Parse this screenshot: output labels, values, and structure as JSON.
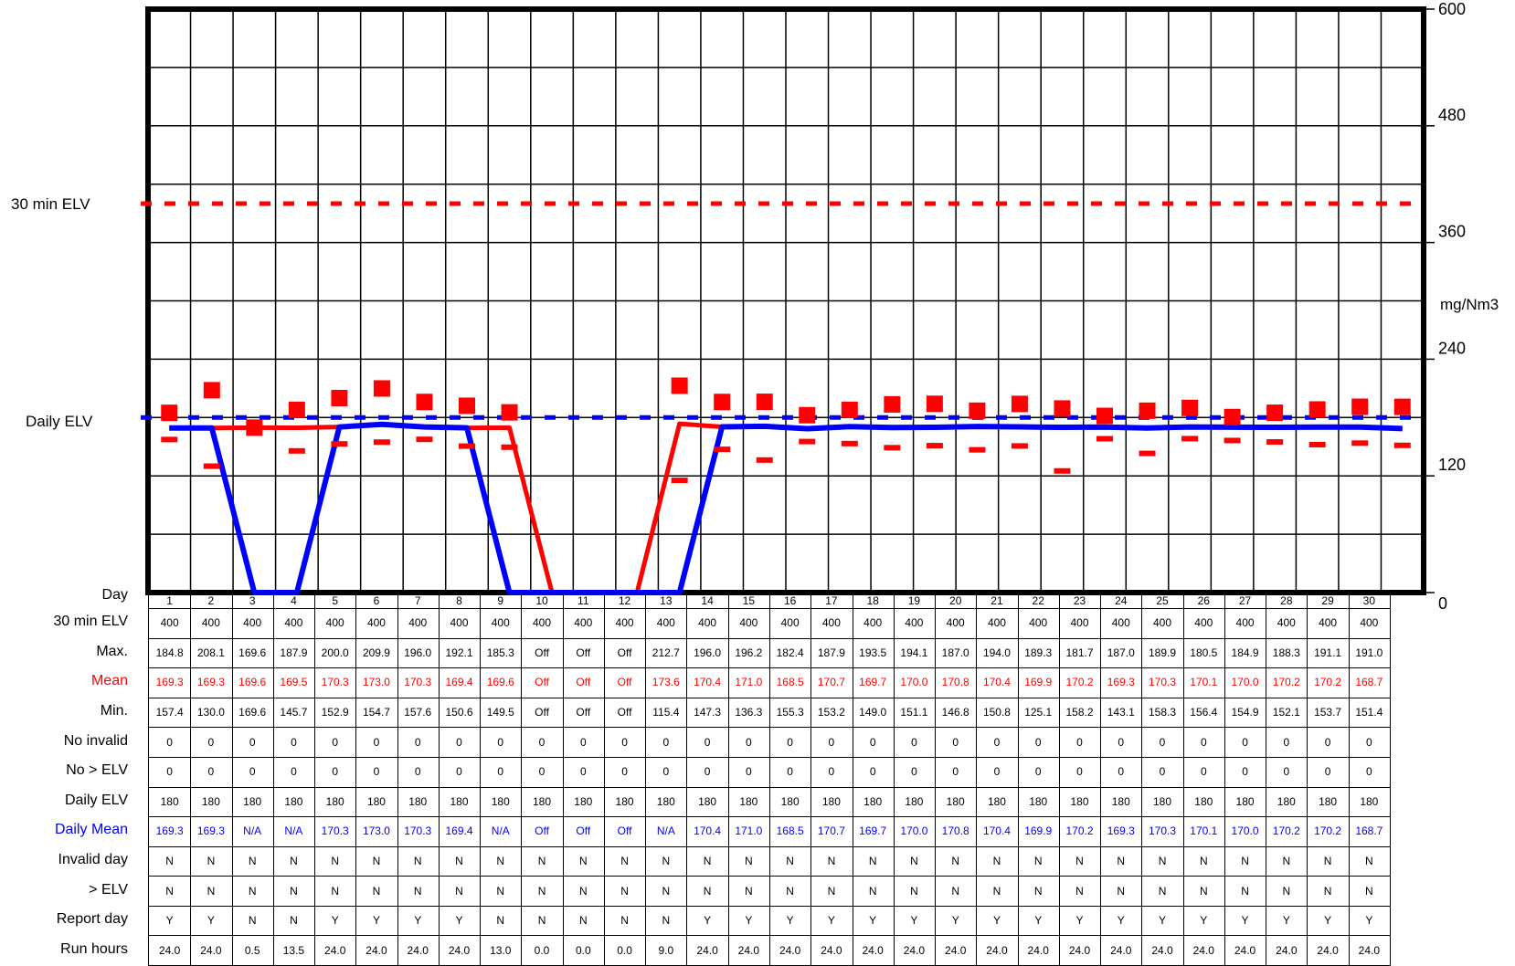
{
  "chart_data": {
    "type": "line",
    "y_axis": {
      "min": 0,
      "max": 600,
      "ticks": [
        0,
        120,
        240,
        360,
        480,
        600
      ],
      "label": "mg/Nm3",
      "position": "right"
    },
    "x_label": "Day",
    "left_labels": {
      "elv30": "30 min ELV",
      "daily_elv": "Daily ELV"
    },
    "reference_lines": [
      {
        "name": "30 min ELV",
        "value": 400,
        "style": "dashed",
        "color": "#ff0000"
      },
      {
        "name": "Daily ELV",
        "value": 180,
        "style": "dashed",
        "color": "#0000ff"
      }
    ],
    "days": [
      1,
      2,
      3,
      4,
      5,
      6,
      7,
      8,
      9,
      10,
      11,
      12,
      13,
      14,
      15,
      16,
      17,
      18,
      19,
      20,
      21,
      22,
      23,
      24,
      25,
      26,
      27,
      28,
      29,
      30
    ],
    "max": [
      184.8,
      208.1,
      169.6,
      187.9,
      200.0,
      209.9,
      196.0,
      192.1,
      185.3,
      null,
      null,
      null,
      212.7,
      196.0,
      196.2,
      182.4,
      187.9,
      193.5,
      194.1,
      187.0,
      194.0,
      189.3,
      181.7,
      187.0,
      189.9,
      180.5,
      184.9,
      188.3,
      191.1,
      191.0
    ],
    "mean": [
      169.3,
      169.3,
      169.6,
      169.5,
      170.3,
      173.0,
      170.3,
      169.4,
      169.6,
      0,
      0,
      0,
      173.6,
      170.4,
      171.0,
      168.5,
      170.7,
      169.7,
      170.0,
      170.8,
      170.4,
      169.9,
      170.2,
      169.3,
      170.3,
      170.1,
      170.0,
      170.2,
      170.2,
      168.7
    ],
    "min": [
      157.4,
      130.0,
      169.6,
      145.7,
      152.9,
      154.7,
      157.6,
      150.6,
      149.5,
      null,
      null,
      null,
      115.4,
      147.3,
      136.3,
      155.3,
      153.2,
      149.0,
      151.1,
      146.8,
      150.8,
      125.1,
      158.2,
      143.1,
      158.3,
      156.4,
      154.9,
      152.1,
      153.7,
      151.4
    ],
    "daily_mean": [
      169.3,
      169.3,
      0,
      0,
      170.3,
      173.0,
      170.3,
      169.4,
      0,
      0,
      0,
      0,
      0,
      170.4,
      171.0,
      168.5,
      170.7,
      169.7,
      170.0,
      170.8,
      170.4,
      169.9,
      170.2,
      169.3,
      170.3,
      170.1,
      170.0,
      170.2,
      170.2,
      168.7
    ],
    "colors": {
      "max": "#ff0000",
      "mean": "#ff0000",
      "min": "#ff0000",
      "daily_mean": "#0000ff",
      "grid": "#000000"
    }
  },
  "table": {
    "rows": [
      {
        "label": "Day",
        "color": "#000000",
        "values": [
          "1",
          "2",
          "3",
          "4",
          "5",
          "6",
          "7",
          "8",
          "9",
          "10",
          "11",
          "12",
          "13",
          "14",
          "15",
          "16",
          "17",
          "18",
          "19",
          "20",
          "21",
          "22",
          "23",
          "24",
          "25",
          "26",
          "27",
          "28",
          "29",
          "30"
        ]
      },
      {
        "label": "30 min ELV",
        "color": "#000000",
        "values": [
          "400",
          "400",
          "400",
          "400",
          "400",
          "400",
          "400",
          "400",
          "400",
          "400",
          "400",
          "400",
          "400",
          "400",
          "400",
          "400",
          "400",
          "400",
          "400",
          "400",
          "400",
          "400",
          "400",
          "400",
          "400",
          "400",
          "400",
          "400",
          "400",
          "400"
        ]
      },
      {
        "label": "Max.",
        "color": "#000000",
        "values": [
          "184.8",
          "208.1",
          "169.6",
          "187.9",
          "200.0",
          "209.9",
          "196.0",
          "192.1",
          "185.3",
          "Off",
          "Off",
          "Off",
          "212.7",
          "196.0",
          "196.2",
          "182.4",
          "187.9",
          "193.5",
          "194.1",
          "187.0",
          "194.0",
          "189.3",
          "181.7",
          "187.0",
          "189.9",
          "180.5",
          "184.9",
          "188.3",
          "191.1",
          "191.0"
        ]
      },
      {
        "label": "Mean",
        "color": "#ff0000",
        "values": [
          "169.3",
          "169.3",
          "169.6",
          "169.5",
          "170.3",
          "173.0",
          "170.3",
          "169.4",
          "169.6",
          "Off",
          "Off",
          "Off",
          "173.6",
          "170.4",
          "171.0",
          "168.5",
          "170.7",
          "169.7",
          "170.0",
          "170.8",
          "170.4",
          "169.9",
          "170.2",
          "169.3",
          "170.3",
          "170.1",
          "170.0",
          "170.2",
          "170.2",
          "168.7"
        ]
      },
      {
        "label": "Min.",
        "color": "#000000",
        "values": [
          "157.4",
          "130.0",
          "169.6",
          "145.7",
          "152.9",
          "154.7",
          "157.6",
          "150.6",
          "149.5",
          "Off",
          "Off",
          "Off",
          "115.4",
          "147.3",
          "136.3",
          "155.3",
          "153.2",
          "149.0",
          "151.1",
          "146.8",
          "150.8",
          "125.1",
          "158.2",
          "143.1",
          "158.3",
          "156.4",
          "154.9",
          "152.1",
          "153.7",
          "151.4"
        ]
      },
      {
        "label": "No invalid",
        "color": "#000000",
        "values": [
          "0",
          "0",
          "0",
          "0",
          "0",
          "0",
          "0",
          "0",
          "0",
          "0",
          "0",
          "0",
          "0",
          "0",
          "0",
          "0",
          "0",
          "0",
          "0",
          "0",
          "0",
          "0",
          "0",
          "0",
          "0",
          "0",
          "0",
          "0",
          "0",
          "0"
        ]
      },
      {
        "label": "No > ELV",
        "color": "#000000",
        "values": [
          "0",
          "0",
          "0",
          "0",
          "0",
          "0",
          "0",
          "0",
          "0",
          "0",
          "0",
          "0",
          "0",
          "0",
          "0",
          "0",
          "0",
          "0",
          "0",
          "0",
          "0",
          "0",
          "0",
          "0",
          "0",
          "0",
          "0",
          "0",
          "0",
          "0"
        ]
      },
      {
        "label": "Daily ELV",
        "color": "#000000",
        "values": [
          "180",
          "180",
          "180",
          "180",
          "180",
          "180",
          "180",
          "180",
          "180",
          "180",
          "180",
          "180",
          "180",
          "180",
          "180",
          "180",
          "180",
          "180",
          "180",
          "180",
          "180",
          "180",
          "180",
          "180",
          "180",
          "180",
          "180",
          "180",
          "180",
          "180"
        ]
      },
      {
        "label": "Daily Mean",
        "color": "#0000ff",
        "values": [
          "169.3",
          "169.3",
          "N/A",
          "N/A",
          "170.3",
          "173.0",
          "170.3",
          "169.4",
          "N/A",
          "Off",
          "Off",
          "Off",
          "N/A",
          "170.4",
          "171.0",
          "168.5",
          "170.7",
          "169.7",
          "170.0",
          "170.8",
          "170.4",
          "169.9",
          "170.2",
          "169.3",
          "170.3",
          "170.1",
          "170.0",
          "170.2",
          "170.2",
          "168.7"
        ]
      },
      {
        "label": "Invalid day",
        "color": "#000000",
        "values": [
          "N",
          "N",
          "N",
          "N",
          "N",
          "N",
          "N",
          "N",
          "N",
          "N",
          "N",
          "N",
          "N",
          "N",
          "N",
          "N",
          "N",
          "N",
          "N",
          "N",
          "N",
          "N",
          "N",
          "N",
          "N",
          "N",
          "N",
          "N",
          "N",
          "N"
        ]
      },
      {
        "label": "> ELV",
        "color": "#000000",
        "values": [
          "N",
          "N",
          "N",
          "N",
          "N",
          "N",
          "N",
          "N",
          "N",
          "N",
          "N",
          "N",
          "N",
          "N",
          "N",
          "N",
          "N",
          "N",
          "N",
          "N",
          "N",
          "N",
          "N",
          "N",
          "N",
          "N",
          "N",
          "N",
          "N",
          "N"
        ]
      },
      {
        "label": "Report day",
        "color": "#000000",
        "values": [
          "Y",
          "Y",
          "N",
          "N",
          "Y",
          "Y",
          "Y",
          "Y",
          "N",
          "N",
          "N",
          "N",
          "N",
          "Y",
          "Y",
          "Y",
          "Y",
          "Y",
          "Y",
          "Y",
          "Y",
          "Y",
          "Y",
          "Y",
          "Y",
          "Y",
          "Y",
          "Y",
          "Y",
          "Y"
        ]
      },
      {
        "label": "Run hours",
        "color": "#000000",
        "values": [
          "24.0",
          "24.0",
          "0.5",
          "13.5",
          "24.0",
          "24.0",
          "24.0",
          "24.0",
          "13.0",
          "0.0",
          "0.0",
          "0.0",
          "9.0",
          "24.0",
          "24.0",
          "24.0",
          "24.0",
          "24.0",
          "24.0",
          "24.0",
          "24.0",
          "24.0",
          "24.0",
          "24.0",
          "24.0",
          "24.0",
          "24.0",
          "24.0",
          "24.0",
          "24.0"
        ]
      }
    ]
  }
}
